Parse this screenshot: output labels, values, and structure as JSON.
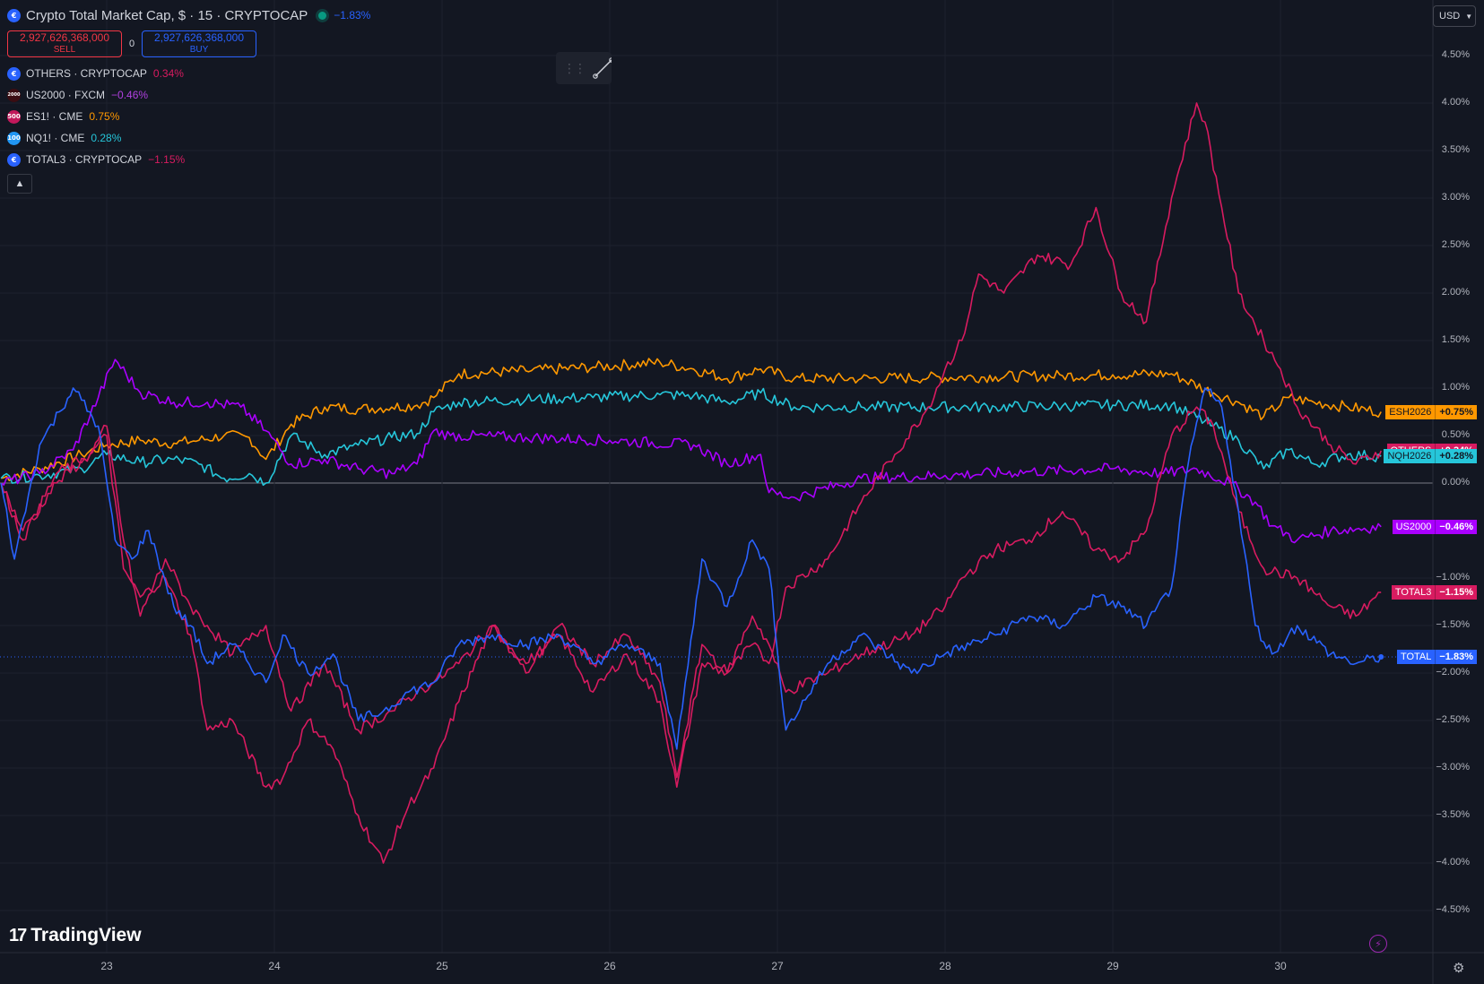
{
  "header": {
    "title": "Crypto Total Market Cap, $ · 15 · CRYPTOCAP",
    "change": "−1.83%",
    "change_color": "#2962ff",
    "symbol_icon": "crypto-coin-icon"
  },
  "trade": {
    "sell_price": "2,927,626,368,000",
    "sell_label": "SELL",
    "spread": "0",
    "buy_price": "2,927,626,368,000",
    "buy_label": "BUY"
  },
  "legend": [
    {
      "name": "OTHERS · CRYPTOCAP",
      "change": "0.34%",
      "color": "#d81b60",
      "icon": "crypto-coin-icon",
      "icon_text": "",
      "icon_bg": "#2962ff"
    },
    {
      "name": "US2000 · FXCM",
      "change": "−0.46%",
      "color": "#b040e0",
      "icon": "us2000-icon",
      "icon_text": "2000",
      "icon_bg": "#3a0d12"
    },
    {
      "name": "ES1! · CME",
      "change": "0.75%",
      "color": "#ff9800",
      "icon": "sp500-icon",
      "icon_text": "500",
      "icon_bg": "#c2185b"
    },
    {
      "name": "NQ1! · CME",
      "change": "0.28%",
      "color": "#26c6da",
      "icon": "nasdaq100-icon",
      "icon_text": "100",
      "icon_bg": "#2196f3"
    },
    {
      "name": "TOTAL3 · CRYPTOCAP",
      "change": "−1.15%",
      "color": "#d81b60",
      "icon": "crypto-coin-icon",
      "icon_text": "",
      "icon_bg": "#2962ff"
    }
  ],
  "toolbar": {
    "currency": "USD",
    "currency_icon": "chevron-down-icon"
  },
  "watermark": {
    "text": "TradingView"
  },
  "price_badges": [
    {
      "name": "ESH2026",
      "value": "+0.75%",
      "bg": "#ff9800",
      "text_color": "#131722"
    },
    {
      "name": "OTHERS",
      "value": "+0.34%",
      "bg": "#d81b60",
      "text_color": "#ffffff"
    },
    {
      "name": "NQH2026",
      "value": "+0.28%",
      "bg": "#26c6da",
      "text_color": "#131722"
    },
    {
      "name": "US2000",
      "value": "−0.46%",
      "bg": "#aa00ff",
      "text_color": "#ffffff"
    },
    {
      "name": "TOTAL3",
      "value": "−1.15%",
      "bg": "#d81b60",
      "text_color": "#ffffff"
    },
    {
      "name": "TOTAL",
      "value": "−1.83%",
      "bg": "#2962ff",
      "text_color": "#ffffff"
    }
  ],
  "chart_data": {
    "type": "line",
    "y_axis_unit": "%",
    "y_ticks": [
      "4.50%",
      "4.00%",
      "3.50%",
      "3.00%",
      "2.50%",
      "2.00%",
      "1.50%",
      "1.00%",
      "0.50%",
      "0.00%",
      "−1.00%",
      "−1.50%",
      "−2.00%",
      "−2.50%",
      "−3.00%",
      "−3.50%",
      "−4.00%",
      "−4.50%"
    ],
    "x_ticks": [
      "23",
      "24",
      "25",
      "26",
      "27",
      "28",
      "29",
      "30"
    ],
    "ylim": [
      -4.5,
      4.5
    ],
    "grid": true,
    "zero_line": true,
    "x_domain": [
      22.37,
      30.91
    ],
    "series": [
      {
        "name": "ESH2026",
        "color": "#ff9800",
        "x": [
          22.37,
          22.6,
          22.85,
          23.0,
          23.2,
          23.4,
          23.55,
          23.7,
          23.85,
          23.95,
          24.1,
          24.3,
          24.5,
          24.7,
          24.85,
          24.95,
          25.1,
          25.5,
          25.9,
          26.3,
          26.5,
          26.7,
          26.9,
          27.1,
          27.5,
          27.9,
          28.3,
          28.7,
          29.0,
          29.35,
          29.6,
          29.75,
          29.9,
          30.05,
          30.2,
          30.4,
          30.6
        ],
        "values": [
          0.05,
          0.15,
          0.3,
          0.4,
          0.45,
          0.42,
          0.45,
          0.5,
          0.48,
          0.25,
          0.62,
          0.8,
          0.78,
          0.8,
          0.82,
          0.9,
          1.15,
          1.18,
          1.22,
          1.27,
          1.2,
          1.1,
          1.2,
          1.1,
          1.1,
          1.11,
          1.12,
          1.13,
          1.14,
          1.15,
          0.95,
          0.85,
          0.7,
          0.9,
          0.85,
          0.8,
          0.75
        ]
      },
      {
        "name": "NQH2026",
        "color": "#26c6da",
        "x": [
          22.37,
          22.6,
          22.85,
          23.0,
          23.2,
          23.4,
          23.55,
          23.7,
          23.85,
          23.95,
          24.1,
          24.3,
          24.5,
          24.7,
          24.85,
          24.95,
          25.1,
          25.5,
          25.9,
          26.3,
          26.5,
          26.7,
          26.9,
          27.1,
          27.5,
          27.9,
          28.3,
          28.7,
          29.0,
          29.35,
          29.6,
          29.75,
          29.9,
          30.05,
          30.2,
          30.4,
          30.6
        ],
        "values": [
          0.05,
          0.08,
          0.15,
          0.3,
          0.22,
          0.25,
          0.2,
          0.05,
          0.1,
          0.0,
          0.5,
          0.3,
          0.4,
          0.48,
          0.52,
          0.75,
          0.85,
          0.88,
          0.9,
          0.93,
          0.92,
          0.85,
          0.95,
          0.8,
          0.8,
          0.8,
          0.8,
          0.81,
          0.82,
          0.82,
          0.6,
          0.45,
          0.15,
          0.35,
          0.2,
          0.3,
          0.28
        ]
      },
      {
        "name": "US2000",
        "color": "#aa00ff",
        "x": [
          22.37,
          22.6,
          22.8,
          22.95,
          23.05,
          23.2,
          23.4,
          23.6,
          23.8,
          23.95,
          24.1,
          24.3,
          24.5,
          24.7,
          24.85,
          24.95,
          25.05,
          25.5,
          26.0,
          26.5,
          26.7,
          26.9,
          26.95,
          27.1,
          27.5,
          28.0,
          28.5,
          29.0,
          29.3,
          29.5,
          29.7,
          29.85,
          29.95,
          30.1,
          30.3,
          30.6
        ],
        "values": [
          0.0,
          0.1,
          0.35,
          0.9,
          1.3,
          0.95,
          0.85,
          0.85,
          0.8,
          0.55,
          0.2,
          0.25,
          0.15,
          0.1,
          0.2,
          0.55,
          0.5,
          0.48,
          0.45,
          0.4,
          0.2,
          0.3,
          -0.1,
          -0.15,
          0.05,
          0.08,
          0.12,
          0.15,
          0.1,
          0.15,
          0.0,
          -0.2,
          -0.45,
          -0.6,
          -0.5,
          -0.46
        ]
      },
      {
        "name": "OTHERS",
        "color": "#d81b60",
        "x": [
          22.37,
          22.5,
          22.7,
          22.9,
          23.0,
          23.1,
          23.2,
          23.35,
          23.5,
          23.6,
          23.75,
          23.95,
          24.05,
          24.2,
          24.35,
          24.5,
          24.65,
          24.8,
          24.95,
          25.1,
          25.3,
          25.5,
          25.7,
          25.9,
          26.1,
          26.3,
          26.4,
          26.55,
          26.7,
          26.85,
          26.95,
          27.05,
          27.3,
          27.5,
          27.7,
          27.9,
          28.0,
          28.1,
          28.2,
          28.35,
          28.55,
          28.75,
          28.9,
          29.05,
          29.2,
          29.35,
          29.5,
          29.55,
          29.65,
          29.75,
          29.9,
          30.0,
          30.1,
          30.3,
          30.45,
          30.6
        ],
        "values": [
          0.0,
          -0.6,
          0.1,
          0.3,
          0.5,
          -0.9,
          -1.2,
          -1.0,
          -1.6,
          -2.6,
          -2.5,
          -3.2,
          -3.1,
          -2.5,
          -2.8,
          -3.5,
          -4.0,
          -3.4,
          -3.0,
          -2.3,
          -1.5,
          -1.9,
          -1.6,
          -2.2,
          -1.8,
          -2.3,
          -3.2,
          -1.9,
          -2.0,
          -1.7,
          -1.9,
          -1.1,
          -0.8,
          -0.2,
          0.3,
          0.8,
          1.2,
          1.5,
          2.2,
          2.0,
          2.4,
          2.3,
          2.9,
          2.0,
          1.7,
          3.0,
          4.0,
          3.8,
          2.9,
          2.0,
          1.5,
          1.2,
          0.8,
          0.4,
          0.2,
          0.34
        ]
      },
      {
        "name": "TOTAL3",
        "color": "#d81b60",
        "x": [
          22.37,
          22.5,
          22.7,
          22.9,
          23.0,
          23.1,
          23.2,
          23.35,
          23.5,
          23.6,
          23.75,
          23.95,
          24.1,
          24.3,
          24.5,
          24.7,
          24.85,
          24.95,
          25.1,
          25.3,
          25.5,
          25.7,
          25.9,
          26.1,
          26.3,
          26.4,
          26.55,
          26.7,
          26.85,
          26.95,
          27.05,
          27.3,
          27.5,
          27.8,
          28.0,
          28.1,
          28.3,
          28.5,
          28.7,
          28.9,
          29.05,
          29.2,
          29.35,
          29.5,
          29.6,
          29.75,
          29.9,
          30.1,
          30.3,
          30.45,
          30.6
        ],
        "values": [
          0.0,
          -0.5,
          0.0,
          0.3,
          0.6,
          -0.6,
          -1.4,
          -0.8,
          -1.3,
          -1.5,
          -1.8,
          -1.5,
          -2.4,
          -1.9,
          -2.6,
          -2.4,
          -2.2,
          -2.1,
          -1.9,
          -1.5,
          -2.0,
          -1.5,
          -1.9,
          -1.6,
          -2.1,
          -3.1,
          -1.7,
          -2.0,
          -1.4,
          -1.7,
          -2.2,
          -2.0,
          -1.8,
          -1.6,
          -1.3,
          -1.0,
          -0.7,
          -0.6,
          -0.3,
          -0.7,
          -0.8,
          -0.5,
          0.5,
          0.8,
          0.6,
          -0.3,
          -0.9,
          -1.0,
          -1.3,
          -1.4,
          -1.15
        ]
      },
      {
        "name": "TOTAL",
        "color": "#2962ff",
        "x": [
          22.37,
          22.45,
          22.6,
          22.8,
          22.95,
          23.05,
          23.15,
          23.25,
          23.4,
          23.5,
          23.6,
          23.75,
          23.95,
          24.05,
          24.2,
          24.35,
          24.5,
          24.65,
          24.8,
          24.95,
          25.1,
          25.3,
          25.5,
          25.7,
          25.9,
          26.1,
          26.3,
          26.4,
          26.55,
          26.7,
          26.85,
          26.95,
          27.05,
          27.3,
          27.5,
          27.8,
          28.0,
          28.3,
          28.5,
          28.7,
          28.9,
          29.05,
          29.2,
          29.35,
          29.45,
          29.55,
          29.65,
          29.75,
          29.85,
          29.95,
          30.1,
          30.3,
          30.45,
          30.6
        ],
        "values": [
          0.0,
          -0.8,
          0.4,
          1.0,
          0.6,
          -0.6,
          -0.8,
          -0.5,
          -1.3,
          -1.5,
          -1.9,
          -1.7,
          -2.1,
          -1.6,
          -2.0,
          -1.8,
          -2.5,
          -2.4,
          -2.2,
          -2.1,
          -1.7,
          -1.6,
          -1.7,
          -1.6,
          -1.9,
          -1.7,
          -1.9,
          -2.8,
          -0.8,
          -1.3,
          -0.6,
          -0.9,
          -2.6,
          -1.9,
          -1.6,
          -2.0,
          -1.8,
          -1.6,
          -1.4,
          -1.5,
          -1.2,
          -1.3,
          -1.5,
          -1.1,
          0.2,
          1.0,
          0.8,
          -0.3,
          -1.5,
          -1.8,
          -1.5,
          -1.8,
          -1.9,
          -1.83
        ]
      }
    ]
  }
}
